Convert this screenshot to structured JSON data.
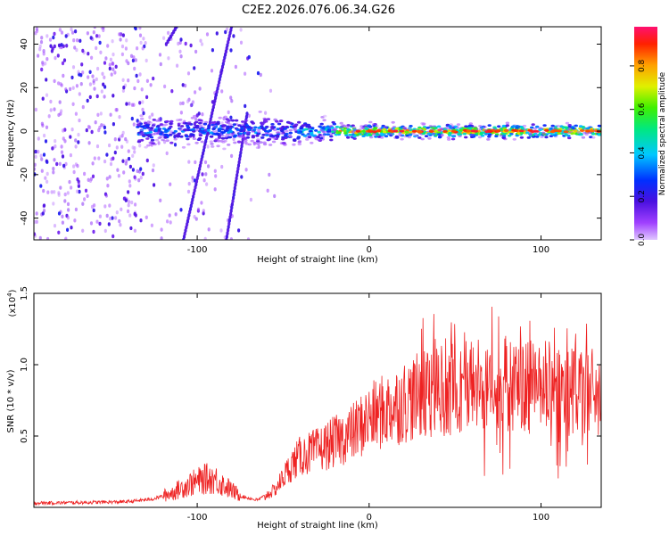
{
  "chart_data": [
    {
      "type": "heatmap",
      "title": "C2E2.2026.076.06.34.G26",
      "xlabel": "Height of straight line (km)",
      "ylabel": "Frequency (Hz)",
      "xlim": [
        -195,
        135
      ],
      "ylim": [
        -50,
        48
      ],
      "xticks": [
        -100,
        0,
        100
      ],
      "yticks": [
        -40,
        -20,
        0,
        20,
        40
      ],
      "ridge_frequency": 0,
      "colorbar": {
        "label": "Normalized spectral amplitude",
        "ticks": [
          0.0,
          0.2,
          0.4,
          0.6,
          0.8
        ],
        "range": [
          0,
          0.98
        ]
      }
    },
    {
      "type": "line",
      "xlabel": "Height of straight line (km)",
      "ylabel": "SNR (10 * v/v)",
      "scale_label": "(x10",
      "scale_exponent": "4",
      "xlim": [
        -195,
        135
      ],
      "ylim": [
        0,
        1.5
      ],
      "xticks": [
        -100,
        0,
        100
      ],
      "yticks": [
        0.5,
        1.0,
        1.5
      ],
      "ytick_labels": [
        "0.5",
        "1.0",
        "1.5"
      ],
      "series": [
        {
          "name": "SNR",
          "color": "#ee2222",
          "x": [
            -195,
            -160,
            -140,
            -125,
            -115,
            -105,
            -95,
            -90,
            -85,
            -75,
            -65,
            -55,
            -45,
            -40,
            -30,
            -20,
            -10,
            0,
            10,
            20,
            30,
            40,
            50,
            60,
            70,
            80,
            90,
            100,
            110,
            120,
            135
          ],
          "y": [
            0.03,
            0.035,
            0.04,
            0.06,
            0.1,
            0.16,
            0.2,
            0.2,
            0.16,
            0.08,
            0.05,
            0.12,
            0.3,
            0.36,
            0.4,
            0.46,
            0.52,
            0.62,
            0.68,
            0.74,
            0.78,
            0.82,
            0.84,
            0.86,
            0.86,
            0.86,
            0.84,
            0.84,
            0.83,
            0.82,
            0.8
          ]
        }
      ]
    }
  ]
}
